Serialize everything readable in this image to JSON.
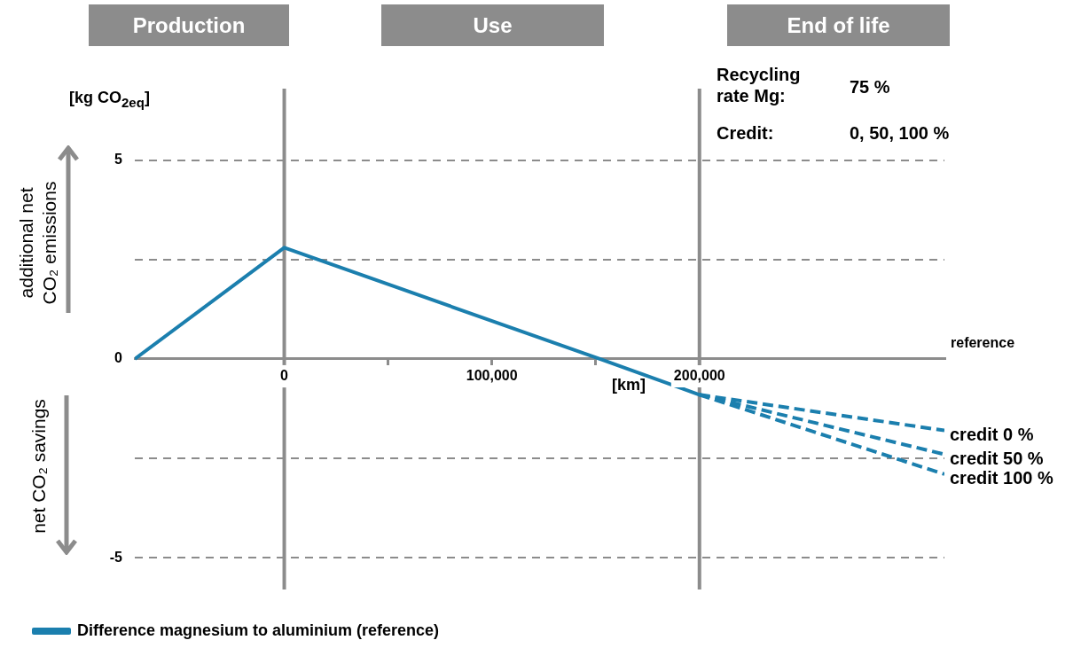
{
  "chart_data": {
    "type": "line",
    "xlabel": "[km]",
    "ylabel": "[kg CO$_{2eq}$]",
    "xlim": [
      -72000,
      318000
    ],
    "ylim": [
      -5.8,
      6.8
    ],
    "xticks": [
      {
        "value": 0,
        "label": "0"
      },
      {
        "value": 50000,
        "label": null
      },
      {
        "value": 100000,
        "label": "100,000"
      },
      {
        "value": 150000,
        "label": null
      },
      {
        "value": 200000,
        "label": "200,000"
      }
    ],
    "yticks": [
      -5,
      {
        "value": -2.5,
        "label": null
      },
      0,
      {
        "value": 2.5,
        "label": null
      },
      5
    ],
    "grid": "y",
    "legend": "bottom left",
    "ref_lines": [
      {
        "axis": "x",
        "value": 0,
        "color": "#8c8c8c"
      },
      {
        "axis": "x",
        "value": 200000,
        "color": "#8c8c8c"
      }
    ],
    "series": [
      {
        "name": "Difference magnesium to aluminium (reference)",
        "color": "#1b7fae",
        "x": [
          -72000,
          0,
          152000,
          200000
        ],
        "values": [
          0,
          2.8,
          0,
          -0.9
        ]
      },
      {
        "name": "credit 0 %",
        "color": "#1b7fae",
        "line_style": "dashed",
        "x": [
          200000,
          318000
        ],
        "values": [
          -0.9,
          -1.8
        ]
      },
      {
        "name": "credit 50 %",
        "color": "#1b7fae",
        "line_style": "dashed",
        "x": [
          200000,
          318000
        ],
        "values": [
          -0.9,
          -2.4
        ]
      },
      {
        "name": "credit 100 %",
        "color": "#1b7fae",
        "line_style": "dashed",
        "x": [
          200000,
          318000
        ],
        "values": [
          -0.9,
          -2.9
        ]
      }
    ],
    "annotations": [
      "Production",
      "Use",
      "End of life",
      "additional net CO₂ emissions",
      "net CO₂ savings",
      "Recycling rate Mg:",
      "75 %",
      "Credit:",
      "0, 50, 100 %",
      "reference"
    ]
  }
}
